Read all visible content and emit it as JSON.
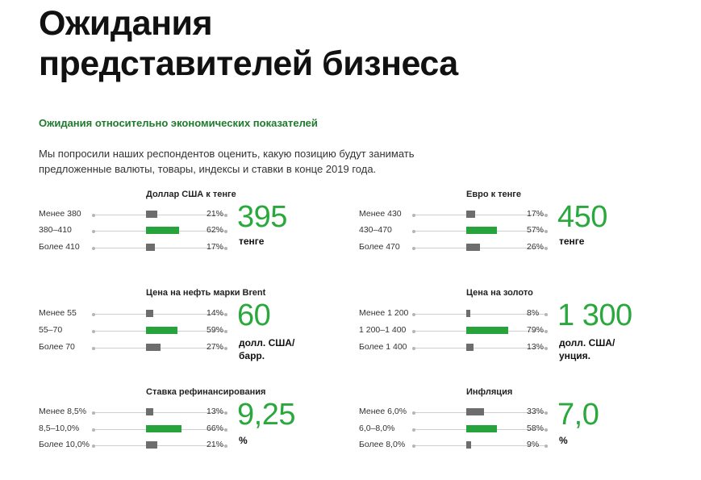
{
  "header": {
    "title_lines": [
      "Ожидания",
      "представителей бизнеса"
    ],
    "subtitle": "Ожидания относительно экономических показателей",
    "intro_lines": [
      "Мы попросили наших респондентов оценить, какую позицию будут занимать",
      "предложенные валюты, товары, индексы и ставки в конце 2019 года."
    ]
  },
  "colors": {
    "accent": "#27a33b",
    "bar_default": "#6d6d6d",
    "subtitle": "#1f7a2e"
  },
  "indicators": [
    {
      "title": "Доллар США к тенге",
      "rows": [
        {
          "label": "Менее 380",
          "value": 21,
          "pct": "21%",
          "highlight": false
        },
        {
          "label": "380–410",
          "value": 62,
          "pct": "62%",
          "highlight": true
        },
        {
          "label": "Более 410",
          "value": 17,
          "pct": "17%",
          "highlight": false
        }
      ],
      "big_value": "395",
      "unit_lines": [
        "тенге"
      ]
    },
    {
      "title": "Евро к тенге",
      "rows": [
        {
          "label": "Менее 430",
          "value": 17,
          "pct": "17%",
          "highlight": false
        },
        {
          "label": "430–470",
          "value": 57,
          "pct": "57%",
          "highlight": true
        },
        {
          "label": "Более 470",
          "value": 26,
          "pct": "26%",
          "highlight": false
        }
      ],
      "big_value": "450",
      "unit_lines": [
        "тенге"
      ]
    },
    {
      "title": "Цена на нефть марки Brent",
      "rows": [
        {
          "label": "Менее 55",
          "value": 14,
          "pct": "14%",
          "highlight": false
        },
        {
          "label": "55–70",
          "value": 59,
          "pct": "59%",
          "highlight": true
        },
        {
          "label": "Более 70",
          "value": 27,
          "pct": "27%",
          "highlight": false
        }
      ],
      "big_value": "60",
      "unit_lines": [
        "долл. США/",
        "барр."
      ]
    },
    {
      "title": "Цена на золото",
      "rows": [
        {
          "label": "Менее 1 200",
          "value": 8,
          "pct": "8%",
          "highlight": false
        },
        {
          "label": "1 200–1 400",
          "value": 79,
          "pct": "79%",
          "highlight": true
        },
        {
          "label": "Более 1 400",
          "value": 13,
          "pct": "13%",
          "highlight": false
        }
      ],
      "big_value": "1 300",
      "unit_lines": [
        "долл. США/",
        "унция."
      ]
    },
    {
      "title": "Ставка рефинансирования",
      "rows": [
        {
          "label": "Менее 8,5%",
          "value": 13,
          "pct": "13%",
          "highlight": false
        },
        {
          "label": "8,5–10,0%",
          "value": 66,
          "pct": "66%",
          "highlight": true
        },
        {
          "label": "Более 10,0%",
          "value": 21,
          "pct": "21%",
          "highlight": false
        }
      ],
      "big_value": "9,25",
      "unit_lines": [
        "%"
      ]
    },
    {
      "title": "Инфляция",
      "rows": [
        {
          "label": "Менее 6,0%",
          "value": 33,
          "pct": "33%",
          "highlight": false
        },
        {
          "label": "6,0–8,0%",
          "value": 58,
          "pct": "58%",
          "highlight": true
        },
        {
          "label": "Более 8,0%",
          "value": 9,
          "pct": "9%",
          "highlight": false
        }
      ],
      "big_value": "7,0",
      "unit_lines": [
        "%"
      ]
    }
  ]
}
